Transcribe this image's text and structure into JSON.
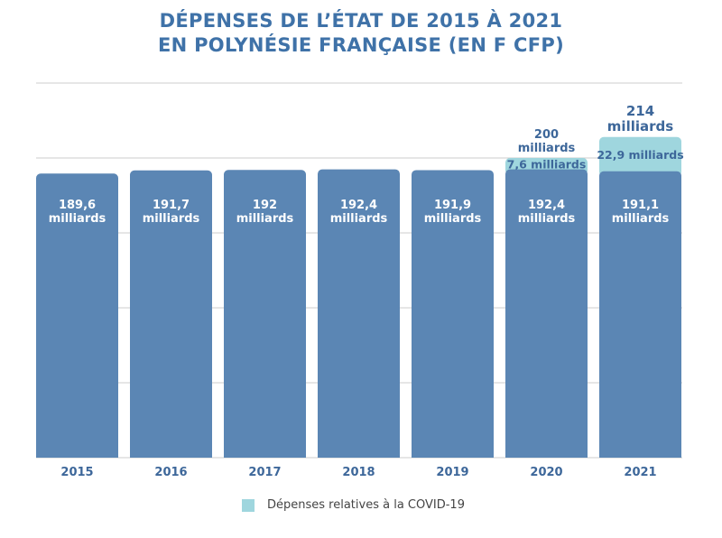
{
  "chart_data": {
    "type": "bar",
    "stacked": true,
    "title": "DÉPENSES DE L'ÉTAT DE 2015 À 2021\nEN POLYNÉSIE FRANÇAISE (EN F CFP)",
    "title_lines": [
      "DÉPENSES DE L’ÉTAT DE 2015 À 2021",
      "EN POLYNÉSIE FRANÇAISE (EN F CFP)"
    ],
    "categories": [
      "2015",
      "2016",
      "2017",
      "2018",
      "2019",
      "2020",
      "2021"
    ],
    "ylim": [
      0,
      250
    ],
    "grid": true,
    "unit": "milliards",
    "series": [
      {
        "values": [
          189.6,
          191.7,
          192,
          192.4,
          191.9,
          192.4,
          191.1
        ],
        "labels": [
          "189,6",
          "191,7",
          "192",
          "192,4",
          "191,9",
          "192,4",
          "191,1"
        ],
        "color": "#5b86b4"
      },
      {
        "name": "Dépenses relatives à la COVID-19",
        "values": [
          0,
          0,
          0,
          0,
          0,
          7.6,
          22.9
        ],
        "labels": [
          "",
          "",
          "",
          "",
          "",
          "7,6 milliards",
          "22,9 milliards"
        ],
        "color": "#9fd6de"
      }
    ],
    "totals": [
      null,
      null,
      null,
      null,
      null,
      "200",
      "214"
    ],
    "legend": "bottom"
  },
  "colors": {
    "title": "#3f72a8",
    "label_dark": "#3d679a",
    "grid": "#cccccc"
  }
}
